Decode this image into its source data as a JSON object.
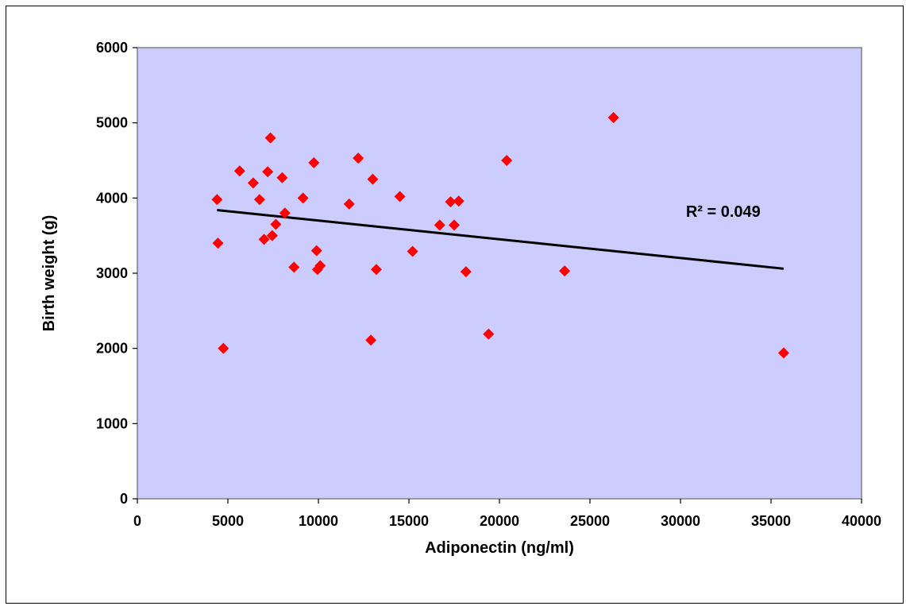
{
  "chart_data": {
    "type": "scatter",
    "title": "",
    "xlabel": "Adiponectin (ng/ml)",
    "ylabel": "Birth weight (g)",
    "xlim": [
      0,
      40000
    ],
    "ylim": [
      0,
      6000
    ],
    "x_ticks": [
      0,
      5000,
      10000,
      15000,
      20000,
      25000,
      30000,
      35000,
      40000
    ],
    "y_ticks": [
      0,
      1000,
      2000,
      3000,
      4000,
      5000,
      6000
    ],
    "grid": false,
    "legend": "none",
    "colors": {
      "plot_background": "#ccccff",
      "marker": "#ff0000",
      "trendline": "#000000"
    },
    "marker": "diamond",
    "series": [
      {
        "points": [
          [
            4400,
            3980
          ],
          [
            4450,
            3400
          ],
          [
            4750,
            2000
          ],
          [
            5650,
            4360
          ],
          [
            6400,
            4200
          ],
          [
            6750,
            3980
          ],
          [
            7000,
            3450
          ],
          [
            7200,
            4350
          ],
          [
            7350,
            4800
          ],
          [
            7450,
            3500
          ],
          [
            7650,
            3650
          ],
          [
            8000,
            4270
          ],
          [
            8150,
            3800
          ],
          [
            8650,
            3080
          ],
          [
            9150,
            4000
          ],
          [
            9750,
            4470
          ],
          [
            9900,
            3300
          ],
          [
            9950,
            3050
          ],
          [
            10100,
            3100
          ],
          [
            11700,
            3920
          ],
          [
            12200,
            4530
          ],
          [
            12900,
            2110
          ],
          [
            13000,
            4250
          ],
          [
            13200,
            3050
          ],
          [
            14500,
            4020
          ],
          [
            15200,
            3290
          ],
          [
            16700,
            3640
          ],
          [
            17300,
            3950
          ],
          [
            17500,
            3640
          ],
          [
            17750,
            3960
          ],
          [
            18150,
            3020
          ],
          [
            19400,
            2190
          ],
          [
            20400,
            4500
          ],
          [
            23600,
            3030
          ],
          [
            26300,
            5070
          ],
          [
            35700,
            1940
          ]
        ]
      }
    ],
    "trendline": {
      "type": "linear",
      "from": [
        4400,
        3840
      ],
      "to": [
        35700,
        3060
      ]
    },
    "annotations": [
      {
        "text": "R² = 0.049",
        "x": 30300,
        "y": 3750
      }
    ]
  }
}
